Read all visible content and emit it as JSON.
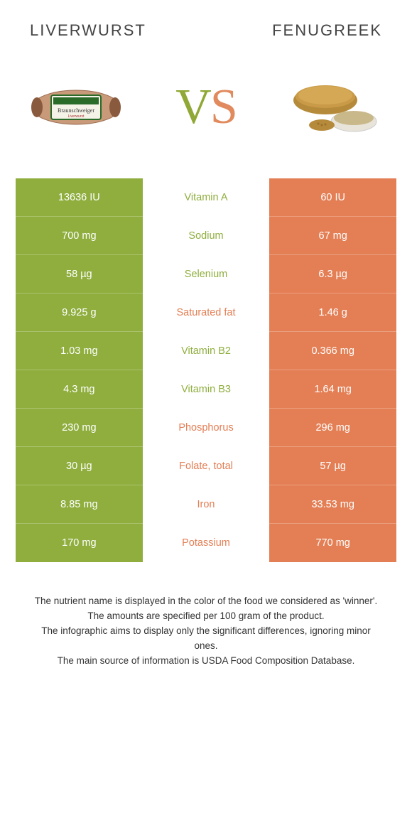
{
  "header": {
    "left": "Liverwurst",
    "right": "Fenugreek"
  },
  "vs": {
    "v": "V",
    "s": "S"
  },
  "colors": {
    "green": "#8fae3e",
    "orange": "#e47f55",
    "text": "#333333",
    "bg": "#ffffff"
  },
  "rows": [
    {
      "left": "13636 IU",
      "mid": "Vitamin A",
      "winner": "green",
      "right": "60 IU"
    },
    {
      "left": "700 mg",
      "mid": "Sodium",
      "winner": "green",
      "right": "67 mg"
    },
    {
      "left": "58 µg",
      "mid": "Selenium",
      "winner": "green",
      "right": "6.3 µg"
    },
    {
      "left": "9.925 g",
      "mid": "Saturated fat",
      "winner": "orange",
      "right": "1.46 g"
    },
    {
      "left": "1.03 mg",
      "mid": "Vitamin B2",
      "winner": "green",
      "right": "0.366 mg"
    },
    {
      "left": "4.3 mg",
      "mid": "Vitamin B3",
      "winner": "green",
      "right": "1.64 mg"
    },
    {
      "left": "230 mg",
      "mid": "Phosphorus",
      "winner": "orange",
      "right": "296 mg"
    },
    {
      "left": "30 µg",
      "mid": "Folate, total",
      "winner": "orange",
      "right": "57 µg"
    },
    {
      "left": "8.85 mg",
      "mid": "Iron",
      "winner": "orange",
      "right": "33.53 mg"
    },
    {
      "left": "170 mg",
      "mid": "Potassium",
      "winner": "orange",
      "right": "770 mg"
    }
  ],
  "footer": {
    "line1": "The nutrient name is displayed in the color of the food we considered as 'winner'.",
    "line2": "The amounts are specified per 100 gram of the product.",
    "line3": "The infographic aims to display only the significant differences, ignoring minor ones.",
    "line4": "The main source of information is USDA Food Composition Database."
  }
}
